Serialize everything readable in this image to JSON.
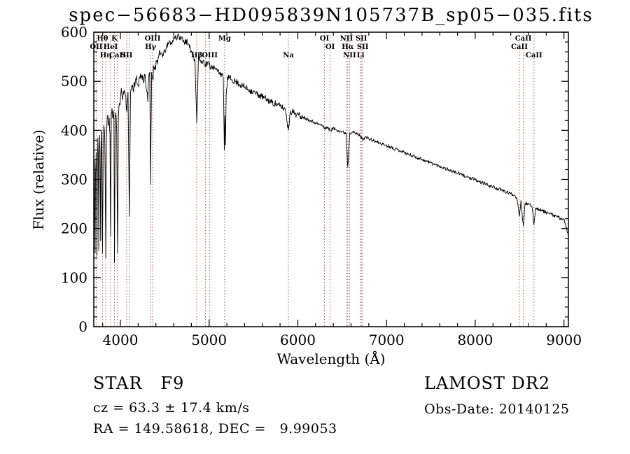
{
  "chart_data": {
    "type": "line",
    "title": "spec−56683−HD095839N105737B_sp05−035.fits",
    "xlabel": "Wavelength (Å)",
    "ylabel": "Flux (relative)",
    "xlim": [
      3700,
      9050
    ],
    "ylim": [
      0,
      600
    ],
    "x_ticks": [
      4000,
      5000,
      6000,
      7000,
      8000,
      9000
    ],
    "y_ticks": [
      0,
      100,
      200,
      300,
      400,
      500,
      600
    ],
    "grid": false,
    "line_color": "#000000",
    "marker_color": "#a05a5a",
    "spectral_lines": [
      {
        "label": "OII",
        "wavelength": 3727,
        "row": 2
      },
      {
        "label": "Hθ",
        "wavelength": 3798,
        "row": 1
      },
      {
        "label": "Hη",
        "wavelength": 3835,
        "row": 3
      },
      {
        "label": "HeI",
        "wavelength": 3889,
        "row": 2
      },
      {
        "label": "K",
        "wavelength": 3933,
        "row": 1
      },
      {
        "label": "CaII",
        "wavelength": 3968,
        "row": 3
      },
      {
        "label": "SII",
        "wavelength": 4072,
        "row": 3
      },
      {
        "label": "",
        "wavelength": 4101,
        "row": 0
      },
      {
        "label": "Hγ",
        "wavelength": 4340,
        "row": 2
      },
      {
        "label": "OIII",
        "wavelength": 4363,
        "row": 1
      },
      {
        "label": "Hβ",
        "wavelength": 4861,
        "row": 3
      },
      {
        "label": "",
        "wavelength": 4959,
        "row": 0
      },
      {
        "label": "OIII",
        "wavelength": 5007,
        "row": 3
      },
      {
        "label": "Mg",
        "wavelength": 5175,
        "row": 1
      },
      {
        "label": "Na",
        "wavelength": 5894,
        "row": 3
      },
      {
        "label": "OI",
        "wavelength": 6300,
        "row": 1
      },
      {
        "label": "OI",
        "wavelength": 6364,
        "row": 2
      },
      {
        "label": "NII",
        "wavelength": 6548,
        "row": 1
      },
      {
        "label": "Hα",
        "wavelength": 6563,
        "row": 2
      },
      {
        "label": "NII",
        "wavelength": 6583,
        "row": 3
      },
      {
        "label": "Li",
        "wavelength": 6708,
        "row": 3
      },
      {
        "label": "SII",
        "wavelength": 6716,
        "row": 1
      },
      {
        "label": "SII",
        "wavelength": 6731,
        "row": 2
      },
      {
        "label": "CaII",
        "wavelength": 8498,
        "row": 2
      },
      {
        "label": "CaII",
        "wavelength": 8542,
        "row": 1
      },
      {
        "label": "CaII",
        "wavelength": 8662,
        "row": 3
      }
    ],
    "noise": {
      "seed": 11,
      "blue_amplitude": 12,
      "mid_amplitude": 7,
      "red_amplitude": 3.5
    },
    "spectrum": [
      [
        3700,
        60
      ],
      [
        3703,
        270
      ],
      [
        3707,
        340
      ],
      [
        3711,
        240
      ],
      [
        3715,
        150
      ],
      [
        3720,
        310
      ],
      [
        3727,
        355
      ],
      [
        3732,
        290
      ],
      [
        3736,
        145
      ],
      [
        3741,
        330
      ],
      [
        3746,
        385
      ],
      [
        3751,
        345
      ],
      [
        3756,
        155
      ],
      [
        3761,
        335
      ],
      [
        3766,
        390
      ],
      [
        3771,
        355
      ],
      [
        3777,
        175
      ],
      [
        3783,
        370
      ],
      [
        3790,
        400
      ],
      [
        3798,
        150
      ],
      [
        3806,
        375
      ],
      [
        3814,
        410
      ],
      [
        3822,
        390
      ],
      [
        3829,
        300
      ],
      [
        3835,
        140
      ],
      [
        3842,
        385
      ],
      [
        3850,
        420
      ],
      [
        3858,
        430
      ],
      [
        3866,
        410
      ],
      [
        3874,
        425
      ],
      [
        3882,
        395
      ],
      [
        3889,
        185
      ],
      [
        3897,
        430
      ],
      [
        3905,
        445
      ],
      [
        3913,
        425
      ],
      [
        3921,
        440
      ],
      [
        3927,
        420
      ],
      [
        3933,
        130
      ],
      [
        3941,
        415
      ],
      [
        3949,
        435
      ],
      [
        3958,
        395
      ],
      [
        3968,
        150
      ],
      [
        3977,
        425
      ],
      [
        3987,
        455
      ],
      [
        4000,
        465
      ],
      [
        4014,
        478
      ],
      [
        4028,
        468
      ],
      [
        4042,
        482
      ],
      [
        4056,
        472
      ],
      [
        4072,
        438
      ],
      [
        4086,
        478
      ],
      [
        4101,
        225
      ],
      [
        4114,
        478
      ],
      [
        4128,
        492
      ],
      [
        4143,
        483
      ],
      [
        4158,
        498
      ],
      [
        4176,
        503
      ],
      [
        4196,
        492
      ],
      [
        4216,
        507
      ],
      [
        4236,
        512
      ],
      [
        4256,
        502
      ],
      [
        4276,
        514
      ],
      [
        4298,
        478
      ],
      [
        4308,
        458
      ],
      [
        4318,
        508
      ],
      [
        4330,
        518
      ],
      [
        4340,
        290
      ],
      [
        4352,
        518
      ],
      [
        4363,
        505
      ],
      [
        4376,
        528
      ],
      [
        4392,
        532
      ],
      [
        4410,
        540
      ],
      [
        4428,
        548
      ],
      [
        4446,
        553
      ],
      [
        4464,
        558
      ],
      [
        4482,
        552
      ],
      [
        4500,
        562
      ],
      [
        4520,
        568
      ],
      [
        4540,
        576
      ],
      [
        4560,
        582
      ],
      [
        4580,
        576
      ],
      [
        4600,
        588
      ],
      [
        4620,
        593
      ],
      [
        4640,
        587
      ],
      [
        4660,
        594
      ],
      [
        4680,
        584
      ],
      [
        4700,
        590
      ],
      [
        4720,
        578
      ],
      [
        4740,
        584
      ],
      [
        4760,
        574
      ],
      [
        4780,
        568
      ],
      [
        4800,
        562
      ],
      [
        4820,
        553
      ],
      [
        4840,
        545
      ],
      [
        4861,
        415
      ],
      [
        4880,
        548
      ],
      [
        4900,
        543
      ],
      [
        4920,
        538
      ],
      [
        4940,
        542
      ],
      [
        4959,
        532
      ],
      [
        4980,
        538
      ],
      [
        5000,
        534
      ],
      [
        5020,
        529
      ],
      [
        5040,
        531
      ],
      [
        5060,
        526
      ],
      [
        5080,
        523
      ],
      [
        5100,
        521
      ],
      [
        5120,
        518
      ],
      [
        5140,
        515
      ],
      [
        5160,
        505
      ],
      [
        5167,
        420
      ],
      [
        5172,
        360
      ],
      [
        5178,
        430
      ],
      [
        5184,
        370
      ],
      [
        5192,
        470
      ],
      [
        5210,
        509
      ],
      [
        5230,
        506
      ],
      [
        5260,
        503
      ],
      [
        5290,
        500
      ],
      [
        5320,
        497
      ],
      [
        5350,
        493
      ],
      [
        5380,
        490
      ],
      [
        5410,
        487
      ],
      [
        5440,
        484
      ],
      [
        5470,
        481
      ],
      [
        5500,
        478
      ],
      [
        5530,
        475
      ],
      [
        5560,
        472
      ],
      [
        5590,
        469
      ],
      [
        5620,
        466
      ],
      [
        5650,
        463
      ],
      [
        5680,
        460
      ],
      [
        5710,
        457
      ],
      [
        5740,
        455
      ],
      [
        5770,
        452
      ],
      [
        5800,
        449
      ],
      [
        5830,
        446
      ],
      [
        5860,
        443
      ],
      [
        5894,
        400
      ],
      [
        5915,
        440
      ],
      [
        5945,
        437
      ],
      [
        5975,
        434
      ],
      [
        6005,
        431
      ],
      [
        6035,
        429
      ],
      [
        6065,
        427
      ],
      [
        6095,
        424
      ],
      [
        6125,
        422
      ],
      [
        6155,
        419
      ],
      [
        6185,
        417
      ],
      [
        6215,
        414
      ],
      [
        6245,
        412
      ],
      [
        6275,
        410
      ],
      [
        6300,
        404
      ],
      [
        6330,
        407
      ],
      [
        6364,
        399
      ],
      [
        6395,
        404
      ],
      [
        6425,
        402
      ],
      [
        6455,
        400
      ],
      [
        6485,
        398
      ],
      [
        6515,
        396
      ],
      [
        6545,
        394
      ],
      [
        6563,
        325
      ],
      [
        6585,
        395
      ],
      [
        6615,
        397
      ],
      [
        6645,
        394
      ],
      [
        6675,
        392
      ],
      [
        6705,
        389
      ],
      [
        6717,
        384
      ],
      [
        6731,
        383
      ],
      [
        6760,
        386
      ],
      [
        6800,
        383
      ],
      [
        6840,
        380
      ],
      [
        6880,
        377
      ],
      [
        6920,
        374
      ],
      [
        6960,
        372
      ],
      [
        7000,
        369
      ],
      [
        7050,
        366
      ],
      [
        7100,
        362
      ],
      [
        7150,
        359
      ],
      [
        7200,
        355
      ],
      [
        7250,
        351
      ],
      [
        7300,
        348
      ],
      [
        7350,
        344
      ],
      [
        7400,
        341
      ],
      [
        7450,
        337
      ],
      [
        7500,
        334
      ],
      [
        7550,
        330
      ],
      [
        7600,
        327
      ],
      [
        7650,
        323
      ],
      [
        7700,
        320
      ],
      [
        7750,
        316
      ],
      [
        7800,
        313
      ],
      [
        7850,
        309
      ],
      [
        7900,
        306
      ],
      [
        7950,
        302
      ],
      [
        8000,
        299
      ],
      [
        8050,
        295
      ],
      [
        8100,
        292
      ],
      [
        8150,
        288
      ],
      [
        8200,
        285
      ],
      [
        8250,
        281
      ],
      [
        8300,
        278
      ],
      [
        8350,
        274
      ],
      [
        8400,
        271
      ],
      [
        8440,
        268
      ],
      [
        8470,
        263
      ],
      [
        8498,
        225
      ],
      [
        8515,
        257
      ],
      [
        8542,
        205
      ],
      [
        8562,
        252
      ],
      [
        8600,
        249
      ],
      [
        8640,
        245
      ],
      [
        8662,
        208
      ],
      [
        8682,
        242
      ],
      [
        8720,
        239
      ],
      [
        8760,
        236
      ],
      [
        8800,
        233
      ],
      [
        8840,
        230
      ],
      [
        8880,
        227
      ],
      [
        8920,
        224
      ],
      [
        8960,
        221
      ],
      [
        9000,
        218
      ],
      [
        9020,
        205
      ],
      [
        9045,
        190
      ]
    ]
  },
  "annotations": {
    "class_line": "STAR   F9",
    "cz_line": "cz = 63.3 ± 17.4 km/s",
    "radec_line": "RA = 149.58618, DEC =   9.99053",
    "survey": "LAMOST DR2",
    "obs_date": "Obs-Date: 20140125"
  }
}
